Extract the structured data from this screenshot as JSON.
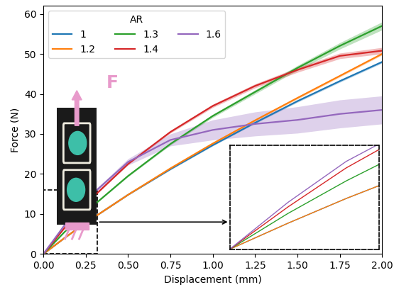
{
  "chart_data": {
    "type": "line",
    "x_label": "Displacement (mm)",
    "y_label": "Force (N)",
    "legend_title": "AR",
    "legend": "upper left",
    "x": [
      0,
      0.125,
      0.25,
      0.5,
      0.75,
      1.0,
      1.25,
      1.5,
      1.75,
      2.0
    ],
    "series": [
      {
        "name": "1",
        "color": "#1f77b4",
        "values": [
          0,
          4.0,
          7.8,
          14.8,
          21.2,
          27.2,
          32.8,
          38.2,
          43.2,
          48
        ],
        "error": [
          0,
          0,
          0.1,
          0.1,
          0.2,
          0.2,
          0.2,
          0.3,
          0.3,
          0.3
        ]
      },
      {
        "name": "1.2",
        "color": "#ff7f0e",
        "values": [
          0,
          4.0,
          7.8,
          14.8,
          21.4,
          27.6,
          33.4,
          39,
          44.5,
          50
        ],
        "error": [
          0,
          0,
          0.1,
          0.1,
          0.2,
          0.2,
          0.2,
          0.3,
          0.3,
          0.3
        ]
      },
      {
        "name": "1.3",
        "color": "#2ca02c",
        "values": [
          0,
          5.5,
          10.5,
          19.5,
          27.5,
          34.5,
          40.5,
          46.5,
          52,
          57
        ],
        "error": [
          0,
          0,
          0.1,
          0.2,
          0.3,
          0.4,
          0.5,
          0.6,
          0.8,
          1.0
        ]
      },
      {
        "name": "1.4",
        "color": "#d62728",
        "values": [
          0,
          6.5,
          12.5,
          22.5,
          30.5,
          37,
          42,
          46,
          49.5,
          50.8
        ],
        "error": [
          0,
          0,
          0.1,
          0.2,
          0.3,
          0.4,
          0.5,
          0.6,
          0.7,
          0.8
        ]
      },
      {
        "name": "1.6",
        "color": "#9467bd",
        "values": [
          0,
          7.2,
          13.5,
          23,
          28.5,
          31,
          32.5,
          33.5,
          35,
          36
        ],
        "error": [
          0,
          0.1,
          0.3,
          0.8,
          1.5,
          2.5,
          3,
          3.3,
          3.5,
          3.5
        ]
      }
    ],
    "xlim": [
      0,
      2.0
    ],
    "xticks": [
      {
        "value": 0,
        "label": "0.00"
      },
      {
        "value": 0.25,
        "label": "0.25"
      },
      {
        "value": 0.5,
        "label": "0.50"
      },
      {
        "value": 0.75,
        "label": "0.75"
      },
      {
        "value": 1.0,
        "label": "1.00"
      },
      {
        "value": 1.25,
        "label": "1.25"
      },
      {
        "value": 1.5,
        "label": "1.50"
      },
      {
        "value": 1.75,
        "label": "1.75"
      },
      {
        "value": 2.0,
        "label": "2.00"
      }
    ],
    "ylim": [
      0,
      62
    ],
    "yticks": [
      0,
      10,
      20,
      30,
      40,
      50,
      60
    ],
    "grid": false,
    "inset": {
      "xlim": [
        0,
        0.32
      ],
      "ylim": [
        0,
        16
      ],
      "tick_labels": false
    },
    "annotations": [
      "F"
    ]
  }
}
